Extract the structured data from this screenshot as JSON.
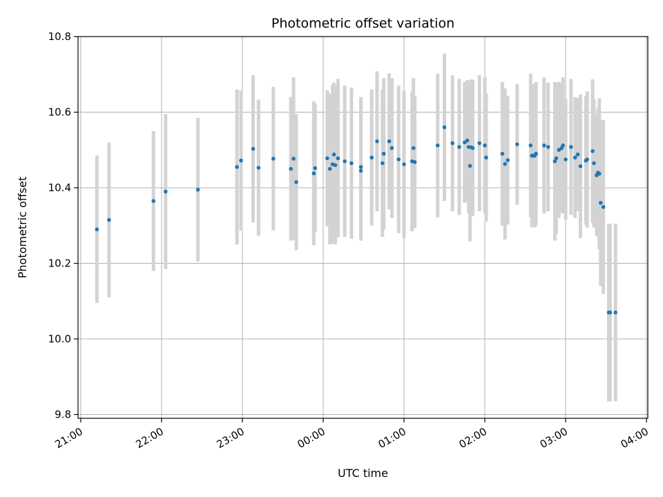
{
  "chart_data": {
    "type": "scatter",
    "title": "Photometric offset variation",
    "xlabel": "UTC time",
    "ylabel": "Photometric offset",
    "x_unit": "UTC time (HH:MM); times after midnight are on the following day",
    "x_ticks": [
      "21:00",
      "22:00",
      "23:00",
      "00:00",
      "01:00",
      "02:00",
      "03:00",
      "04:00"
    ],
    "y_ticks": [
      "9.8",
      "10.0",
      "10.2",
      "10.4",
      "10.6",
      "10.8"
    ],
    "xlim": [
      "20:58",
      "04:01"
    ],
    "ylim": [
      9.79,
      10.8
    ],
    "grid": true,
    "colors": {
      "points": "#1f77b4",
      "error_bars": "#d3d3d3",
      "grid": "#b0b0b0"
    },
    "series": [
      {
        "x": [
          "21:12",
          "21:21",
          "21:54",
          "22:03",
          "22:27",
          "22:56",
          "22:59",
          "23:08",
          "23:12",
          "23:23",
          "23:36",
          "23:38",
          "23:40",
          "23:53",
          "23:54",
          "00:03",
          "00:05",
          "00:07",
          "00:08",
          "00:09",
          "00:11",
          "00:16",
          "00:21",
          "00:28",
          "00:28",
          "00:36",
          "00:40",
          "00:44",
          "00:45",
          "00:49",
          "00:51",
          "00:56",
          "01:00",
          "01:06",
          "01:07",
          "01:08",
          "01:25",
          "01:30",
          "01:36",
          "01:41",
          "01:45",
          "01:47",
          "01:48",
          "01:49",
          "01:50",
          "01:51",
          "01:56",
          "02:00",
          "02:01",
          "02:13",
          "02:15",
          "02:17",
          "02:24",
          "02:34",
          "02:35",
          "02:36",
          "02:37",
          "02:38",
          "02:44",
          "02:47",
          "02:52",
          "02:53",
          "02:55",
          "02:57",
          "02:58",
          "03:00",
          "03:04",
          "03:07",
          "03:09",
          "03:11",
          "03:15",
          "03:16",
          "03:20",
          "03:21",
          "03:23",
          "03:24",
          "03:25",
          "03:26",
          "03:28",
          "03:32",
          "03:33",
          "03:37"
        ],
        "y": [
          10.29,
          10.315,
          10.365,
          10.39,
          10.395,
          10.455,
          10.472,
          10.503,
          10.453,
          10.477,
          10.45,
          10.477,
          10.415,
          10.438,
          10.452,
          10.478,
          10.45,
          10.462,
          10.488,
          10.46,
          10.478,
          10.47,
          10.465,
          10.455,
          10.445,
          10.48,
          10.523,
          10.465,
          10.49,
          10.523,
          10.505,
          10.475,
          10.462,
          10.47,
          10.505,
          10.468,
          10.512,
          10.56,
          10.518,
          10.508,
          10.52,
          10.525,
          10.508,
          10.458,
          10.507,
          10.505,
          10.518,
          10.512,
          10.48,
          10.49,
          10.463,
          10.473,
          10.515,
          10.512,
          10.485,
          10.485,
          10.485,
          10.49,
          10.512,
          10.508,
          10.47,
          10.478,
          10.5,
          10.505,
          10.512,
          10.475,
          10.508,
          10.48,
          10.488,
          10.457,
          10.472,
          10.475,
          10.497,
          10.465,
          10.433,
          10.44,
          10.437,
          10.36,
          10.349,
          10.07,
          10.07,
          10.07
        ],
        "yerr": [
          0.195,
          0.205,
          0.185,
          0.205,
          0.19,
          0.205,
          0.185,
          0.195,
          0.18,
          0.19,
          0.19,
          0.215,
          0.18,
          0.19,
          0.17,
          0.18,
          0.2,
          0.21,
          0.19,
          0.21,
          0.21,
          0.2,
          0.2,
          0.185,
          0.185,
          0.18,
          0.185,
          0.195,
          0.2,
          0.18,
          0.185,
          0.195,
          0.195,
          0.185,
          0.185,
          0.175,
          0.19,
          0.195,
          0.18,
          0.18,
          0.16,
          0.16,
          0.175,
          0.2,
          0.18,
          0.18,
          0.18,
          0.18,
          0.17,
          0.19,
          0.2,
          0.17,
          0.16,
          0.19,
          0.19,
          0.19,
          0.19,
          0.19,
          0.18,
          0.17,
          0.21,
          0.2,
          0.18,
          0.17,
          0.18,
          0.16,
          0.18,
          0.16,
          0.15,
          0.19,
          0.17,
          0.18,
          0.19,
          0.17,
          0.16,
          0.17,
          0.2,
          0.22,
          0.23,
          0.235,
          0.235,
          0.235
        ]
      }
    ]
  }
}
